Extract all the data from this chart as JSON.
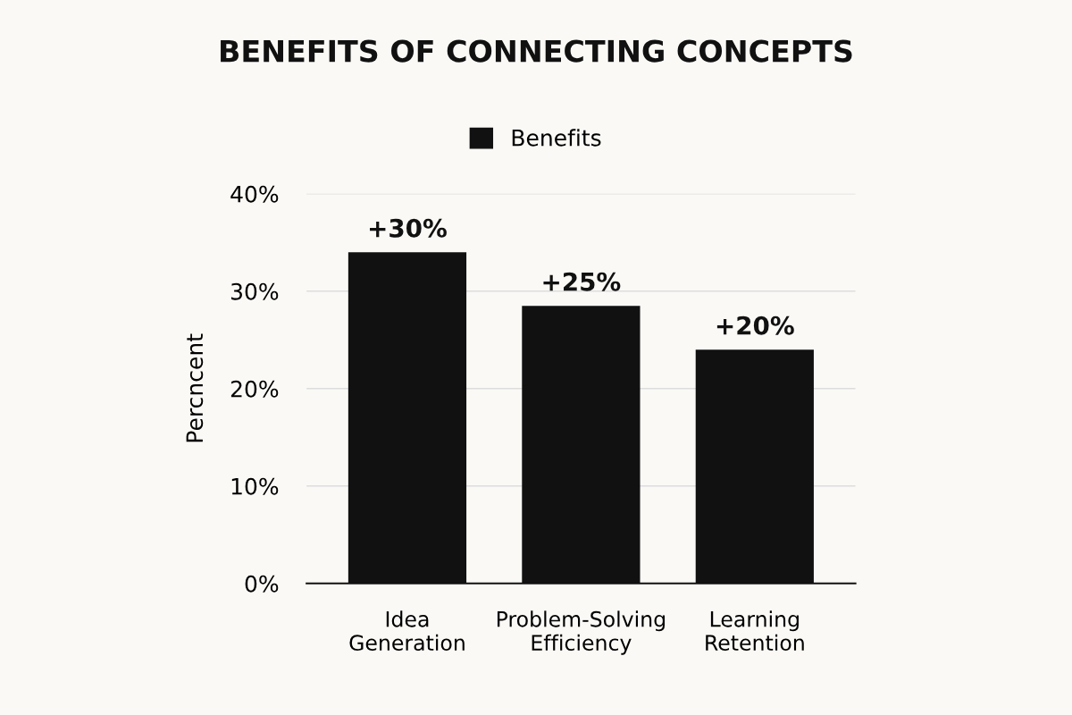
{
  "chart_data": {
    "type": "bar",
    "title": "BENEFITS OF CONNECTING CONCEPTS",
    "ylabel": "Percncent",
    "categories": [
      "Idea\nGeneration",
      "Problem-Solving\nEfficiency",
      "Learning\nRetention"
    ],
    "series": [
      {
        "name": "Benefits",
        "color": "#111111",
        "values": [
          34,
          28.5,
          24
        ]
      }
    ],
    "annotations": [
      {
        "text": "+30%",
        "x": "Idea\nGeneration",
        "y": 34
      },
      {
        "text": "+25%",
        "x": "Problem-Solving\nEfficiency",
        "y": 28.5
      },
      {
        "text": "+20%",
        "x": "Learning\nRetention",
        "y": 24
      }
    ],
    "ylim": [
      0,
      40
    ],
    "yticks": [
      {
        "value": 0,
        "label": "0%"
      },
      {
        "value": 10,
        "label": "10%"
      },
      {
        "value": 20,
        "label": "20%"
      },
      {
        "value": 30,
        "label": "30%"
      },
      {
        "value": 40,
        "label": "40%"
      }
    ],
    "grid": "y",
    "legend": "top"
  }
}
